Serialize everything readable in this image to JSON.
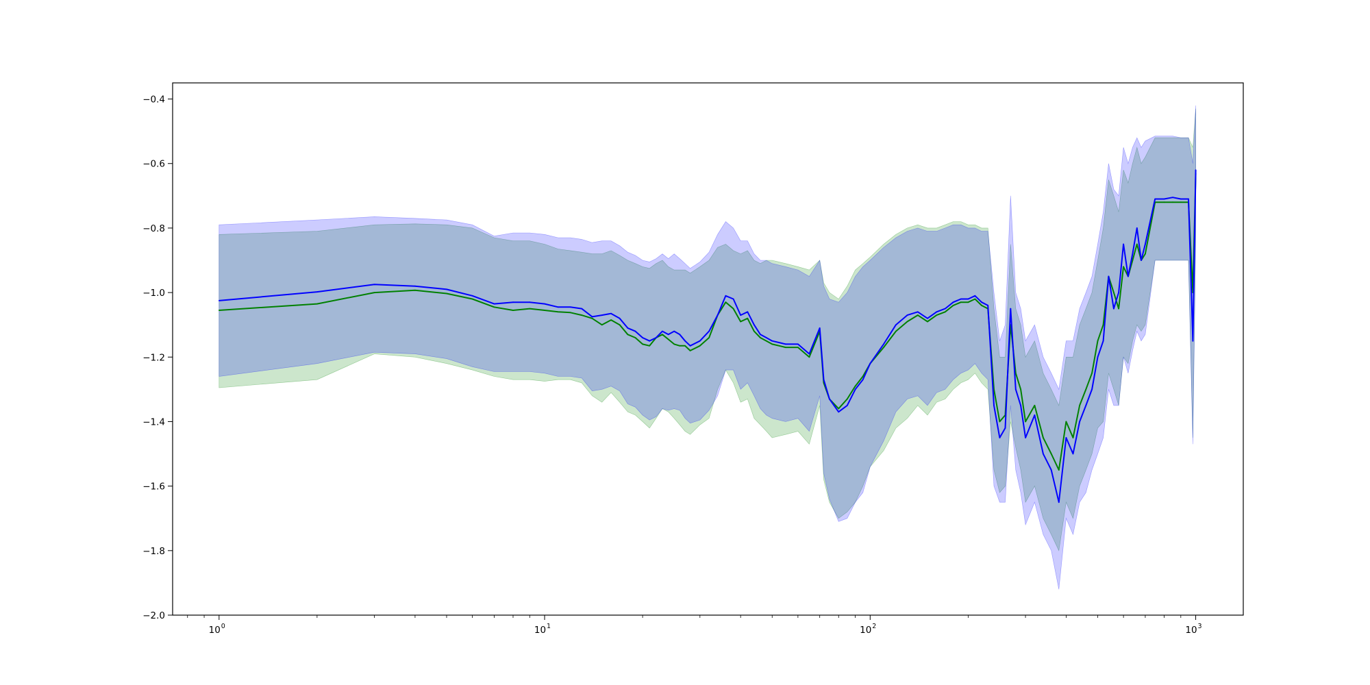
{
  "chart_data": {
    "type": "line",
    "title": "",
    "xlabel": "",
    "ylabel": "",
    "xscale": "log",
    "xlim": [
      0.72,
      1400
    ],
    "ylim": [
      -2.0,
      -0.35
    ],
    "grid": false,
    "x_ticks": [
      {
        "value": 1,
        "base": "10",
        "exp": "0"
      },
      {
        "value": 10,
        "base": "10",
        "exp": "1"
      },
      {
        "value": 100,
        "base": "10",
        "exp": "2"
      },
      {
        "value": 1000,
        "base": "10",
        "exp": "3"
      }
    ],
    "y_ticks": [
      {
        "value": -2.0,
        "label": "−2.0"
      },
      {
        "value": -1.8,
        "label": "−1.8"
      },
      {
        "value": -1.6,
        "label": "−1.6"
      },
      {
        "value": -1.4,
        "label": "−1.4"
      },
      {
        "value": -1.2,
        "label": "−1.2"
      },
      {
        "value": -1.0,
        "label": "−1.0"
      },
      {
        "value": -0.8,
        "label": "−0.8"
      },
      {
        "value": -0.6,
        "label": "−0.6"
      },
      {
        "value": -0.4,
        "label": "−0.4"
      }
    ],
    "series": [
      {
        "color": "#008000",
        "band_color": "#008000",
        "band_opacity": 0.2,
        "x": [
          1,
          2,
          3,
          4,
          5,
          6,
          7,
          8,
          9,
          10,
          11,
          12,
          13,
          14,
          15,
          16,
          17,
          18,
          19,
          20,
          21,
          22,
          23,
          24,
          25,
          26,
          27,
          28,
          30,
          32,
          34,
          36,
          38,
          40,
          42,
          44,
          46,
          48,
          50,
          55,
          60,
          65,
          70,
          72,
          75,
          80,
          85,
          90,
          95,
          100,
          110,
          120,
          130,
          140,
          150,
          160,
          170,
          180,
          190,
          200,
          210,
          220,
          230,
          240,
          250,
          260,
          270,
          280,
          290,
          300,
          320,
          340,
          360,
          380,
          400,
          420,
          440,
          460,
          480,
          500,
          520,
          540,
          560,
          580,
          600,
          620,
          640,
          660,
          680,
          700,
          750,
          800,
          850,
          900,
          950,
          980,
          1000
        ],
        "y": [
          -1.055,
          -1.035,
          -1.0,
          -0.993,
          -1.003,
          -1.02,
          -1.045,
          -1.055,
          -1.05,
          -1.055,
          -1.06,
          -1.062,
          -1.07,
          -1.08,
          -1.1,
          -1.085,
          -1.1,
          -1.13,
          -1.14,
          -1.16,
          -1.165,
          -1.14,
          -1.13,
          -1.145,
          -1.16,
          -1.165,
          -1.165,
          -1.18,
          -1.165,
          -1.14,
          -1.07,
          -1.03,
          -1.05,
          -1.09,
          -1.08,
          -1.12,
          -1.14,
          -1.15,
          -1.16,
          -1.17,
          -1.17,
          -1.2,
          -1.12,
          -1.28,
          -1.33,
          -1.36,
          -1.33,
          -1.29,
          -1.26,
          -1.22,
          -1.17,
          -1.12,
          -1.09,
          -1.07,
          -1.09,
          -1.07,
          -1.06,
          -1.04,
          -1.03,
          -1.03,
          -1.02,
          -1.04,
          -1.05,
          -1.3,
          -1.4,
          -1.38,
          -1.1,
          -1.25,
          -1.3,
          -1.4,
          -1.35,
          -1.45,
          -1.5,
          -1.55,
          -1.4,
          -1.45,
          -1.35,
          -1.3,
          -1.25,
          -1.15,
          -1.1,
          -0.95,
          -1.0,
          -1.05,
          -0.92,
          -0.95,
          -0.9,
          -0.85,
          -0.9,
          -0.88,
          -0.72,
          -0.72,
          -0.72,
          -0.72,
          -0.72,
          -1.0,
          -0.63
        ],
        "upper": [
          -0.82,
          -0.81,
          -0.79,
          -0.787,
          -0.79,
          -0.8,
          -0.83,
          -0.84,
          -0.84,
          -0.85,
          -0.865,
          -0.87,
          -0.875,
          -0.88,
          -0.88,
          -0.87,
          -0.885,
          -0.9,
          -0.91,
          -0.92,
          -0.925,
          -0.91,
          -0.9,
          -0.92,
          -0.93,
          -0.93,
          -0.93,
          -0.94,
          -0.92,
          -0.9,
          -0.86,
          -0.85,
          -0.87,
          -0.88,
          -0.87,
          -0.9,
          -0.91,
          -0.9,
          -0.9,
          -0.91,
          -0.92,
          -0.93,
          -0.9,
          -0.97,
          -1.0,
          -1.02,
          -0.98,
          -0.93,
          -0.91,
          -0.89,
          -0.85,
          -0.82,
          -0.8,
          -0.79,
          -0.8,
          -0.8,
          -0.79,
          -0.78,
          -0.78,
          -0.79,
          -0.79,
          -0.8,
          -0.8,
          -1.05,
          -1.2,
          -1.2,
          -0.85,
          -1.05,
          -1.1,
          -1.2,
          -1.15,
          -1.25,
          -1.3,
          -1.35,
          -1.2,
          -1.2,
          -1.1,
          -1.05,
          -1.0,
          -0.9,
          -0.8,
          -0.65,
          -0.7,
          -0.75,
          -0.62,
          -0.66,
          -0.6,
          -0.55,
          -0.6,
          -0.58,
          -0.52,
          -0.52,
          -0.52,
          -0.52,
          -0.52,
          -0.55,
          -0.43
        ],
        "lower": [
          -1.295,
          -1.27,
          -1.19,
          -1.2,
          -1.22,
          -1.24,
          -1.26,
          -1.27,
          -1.27,
          -1.275,
          -1.27,
          -1.27,
          -1.28,
          -1.32,
          -1.34,
          -1.31,
          -1.34,
          -1.37,
          -1.38,
          -1.4,
          -1.42,
          -1.39,
          -1.36,
          -1.37,
          -1.39,
          -1.41,
          -1.43,
          -1.44,
          -1.41,
          -1.39,
          -1.3,
          -1.24,
          -1.28,
          -1.34,
          -1.33,
          -1.39,
          -1.41,
          -1.43,
          -1.45,
          -1.44,
          -1.43,
          -1.47,
          -1.35,
          -1.58,
          -1.65,
          -1.7,
          -1.68,
          -1.65,
          -1.6,
          -1.54,
          -1.49,
          -1.42,
          -1.39,
          -1.35,
          -1.38,
          -1.34,
          -1.33,
          -1.3,
          -1.28,
          -1.27,
          -1.25,
          -1.28,
          -1.3,
          -1.55,
          -1.62,
          -1.6,
          -1.4,
          -1.48,
          -1.55,
          -1.65,
          -1.6,
          -1.7,
          -1.75,
          -1.8,
          -1.65,
          -1.7,
          -1.6,
          -1.55,
          -1.5,
          -1.42,
          -1.4,
          -1.25,
          -1.3,
          -1.35,
          -1.2,
          -1.22,
          -1.15,
          -1.1,
          -1.12,
          -1.1,
          -0.9,
          -0.9,
          -0.9,
          -0.9,
          -0.9,
          -1.45,
          -0.82
        ]
      },
      {
        "color": "#0000ff",
        "band_color": "#0000ff",
        "band_opacity": 0.2,
        "x": [
          1,
          2,
          3,
          4,
          5,
          6,
          7,
          8,
          9,
          10,
          11,
          12,
          13,
          14,
          15,
          16,
          17,
          18,
          19,
          20,
          21,
          22,
          23,
          24,
          25,
          26,
          27,
          28,
          30,
          32,
          34,
          36,
          38,
          40,
          42,
          44,
          46,
          48,
          50,
          55,
          60,
          65,
          70,
          72,
          75,
          80,
          85,
          90,
          95,
          100,
          110,
          120,
          130,
          140,
          150,
          160,
          170,
          180,
          190,
          200,
          210,
          220,
          230,
          240,
          250,
          260,
          270,
          280,
          290,
          300,
          320,
          340,
          360,
          380,
          400,
          420,
          440,
          460,
          480,
          500,
          520,
          540,
          560,
          580,
          600,
          620,
          640,
          660,
          680,
          700,
          750,
          800,
          850,
          900,
          950,
          980,
          1000
        ],
        "y": [
          -1.025,
          -0.998,
          -0.975,
          -0.98,
          -0.99,
          -1.01,
          -1.035,
          -1.03,
          -1.03,
          -1.035,
          -1.045,
          -1.045,
          -1.05,
          -1.075,
          -1.07,
          -1.065,
          -1.08,
          -1.11,
          -1.12,
          -1.14,
          -1.15,
          -1.14,
          -1.12,
          -1.13,
          -1.12,
          -1.13,
          -1.15,
          -1.165,
          -1.15,
          -1.12,
          -1.07,
          -1.01,
          -1.02,
          -1.07,
          -1.06,
          -1.1,
          -1.13,
          -1.14,
          -1.15,
          -1.16,
          -1.16,
          -1.19,
          -1.11,
          -1.27,
          -1.33,
          -1.37,
          -1.35,
          -1.3,
          -1.27,
          -1.22,
          -1.16,
          -1.1,
          -1.07,
          -1.06,
          -1.08,
          -1.06,
          -1.05,
          -1.03,
          -1.02,
          -1.02,
          -1.01,
          -1.03,
          -1.04,
          -1.35,
          -1.45,
          -1.42,
          -1.05,
          -1.3,
          -1.35,
          -1.45,
          -1.38,
          -1.5,
          -1.55,
          -1.65,
          -1.45,
          -1.5,
          -1.4,
          -1.35,
          -1.3,
          -1.2,
          -1.15,
          -0.95,
          -1.05,
          -1.0,
          -0.85,
          -0.95,
          -0.88,
          -0.8,
          -0.9,
          -0.85,
          -0.71,
          -0.71,
          -0.705,
          -0.71,
          -0.71,
          -1.15,
          -0.62
        ],
        "upper": [
          -0.79,
          -0.775,
          -0.765,
          -0.77,
          -0.775,
          -0.79,
          -0.825,
          -0.815,
          -0.815,
          -0.82,
          -0.83,
          -0.83,
          -0.835,
          -0.845,
          -0.84,
          -0.84,
          -0.855,
          -0.875,
          -0.885,
          -0.9,
          -0.905,
          -0.895,
          -0.88,
          -0.895,
          -0.88,
          -0.895,
          -0.91,
          -0.925,
          -0.905,
          -0.875,
          -0.82,
          -0.78,
          -0.8,
          -0.84,
          -0.84,
          -0.88,
          -0.9,
          -0.9,
          -0.91,
          -0.92,
          -0.93,
          -0.95,
          -0.9,
          -0.98,
          -1.02,
          -1.03,
          -1.0,
          -0.95,
          -0.92,
          -0.9,
          -0.86,
          -0.83,
          -0.81,
          -0.8,
          -0.81,
          -0.81,
          -0.8,
          -0.79,
          -0.79,
          -0.8,
          -0.8,
          -0.81,
          -0.81,
          -1.0,
          -1.15,
          -1.1,
          -0.7,
          -1.0,
          -1.05,
          -1.15,
          -1.1,
          -1.2,
          -1.25,
          -1.3,
          -1.15,
          -1.15,
          -1.05,
          -1.0,
          -0.95,
          -0.85,
          -0.75,
          -0.6,
          -0.68,
          -0.7,
          -0.55,
          -0.6,
          -0.55,
          -0.52,
          -0.55,
          -0.53,
          -0.515,
          -0.515,
          -0.515,
          -0.52,
          -0.52,
          -0.6,
          -0.42
        ],
        "lower": [
          -1.26,
          -1.22,
          -1.185,
          -1.19,
          -1.205,
          -1.23,
          -1.245,
          -1.245,
          -1.245,
          -1.25,
          -1.26,
          -1.26,
          -1.265,
          -1.305,
          -1.3,
          -1.29,
          -1.305,
          -1.345,
          -1.355,
          -1.38,
          -1.395,
          -1.385,
          -1.36,
          -1.365,
          -1.36,
          -1.365,
          -1.39,
          -1.405,
          -1.395,
          -1.365,
          -1.32,
          -1.24,
          -1.24,
          -1.3,
          -1.28,
          -1.32,
          -1.36,
          -1.38,
          -1.39,
          -1.4,
          -1.39,
          -1.43,
          -1.32,
          -1.56,
          -1.64,
          -1.71,
          -1.7,
          -1.65,
          -1.62,
          -1.54,
          -1.46,
          -1.37,
          -1.33,
          -1.32,
          -1.35,
          -1.31,
          -1.3,
          -1.27,
          -1.25,
          -1.24,
          -1.22,
          -1.25,
          -1.27,
          -1.6,
          -1.65,
          -1.65,
          -1.35,
          -1.55,
          -1.62,
          -1.72,
          -1.65,
          -1.75,
          -1.8,
          -1.92,
          -1.7,
          -1.75,
          -1.65,
          -1.62,
          -1.55,
          -1.5,
          -1.45,
          -1.3,
          -1.35,
          -1.35,
          -1.2,
          -1.25,
          -1.18,
          -1.12,
          -1.15,
          -1.13,
          -0.9,
          -0.9,
          -0.9,
          -0.9,
          -0.9,
          -1.47,
          -0.81
        ]
      }
    ]
  }
}
